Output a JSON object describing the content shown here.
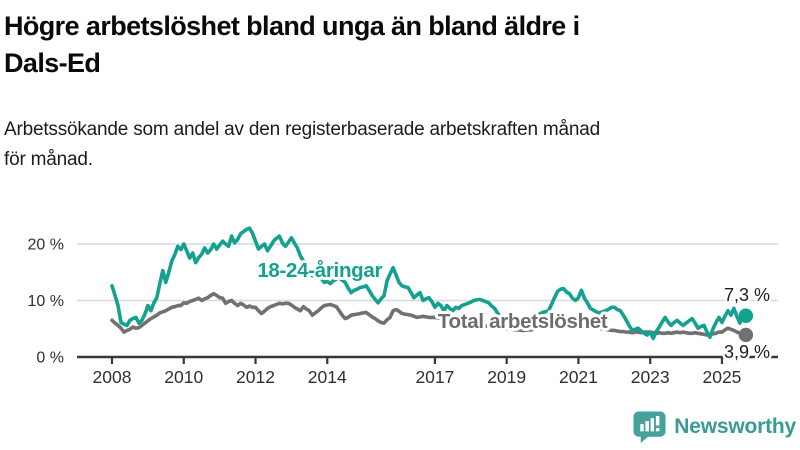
{
  "title": {
    "lines": [
      "Högre arbetslöshet bland unga än bland äldre i",
      "Dals-Ed"
    ]
  },
  "subtitle": {
    "lines": [
      "Arbetssökande som andel av den registerbaserade arbetskraften månad",
      "för månad."
    ]
  },
  "branding": {
    "logo_text": "Newsworthy",
    "logo_icon": "newsworthy-chart-bubble-icon",
    "icon_color": "#46a19b",
    "text_color": "#3a9a95"
  },
  "colors": {
    "accent_teal": "#14a18f",
    "line_gray": "#717171",
    "grid": "#d9d9d9",
    "axis": "#383838",
    "tick_text": "#303030",
    "end_label_text": "#1f1f1f",
    "background": "#ffffff"
  },
  "chart_data": {
    "type": "line",
    "title": "Högre arbetslöshet bland unga än bland äldre i Dals-Ed",
    "subtitle": "Arbetssökande som andel av den registerbaserade arbetskraften månad för månad.",
    "xlabel": "",
    "ylabel": "",
    "x_unit": "month",
    "x_start": "2008-01",
    "x_end": "2025-09",
    "ylim": [
      0,
      24
    ],
    "grid": "horizontal",
    "legend_position": "inline-labels",
    "yticks": [
      {
        "value": 0,
        "label": "0 %"
      },
      {
        "value": 10,
        "label": "10 %"
      },
      {
        "value": 20,
        "label": "20 %"
      }
    ],
    "xticks": [
      2008,
      2010,
      2012,
      2014,
      2017,
      2019,
      2021,
      2023,
      2025
    ],
    "series": [
      {
        "name": "18-24-åringar",
        "color": "#14a18f",
        "label_color": "#14a18f",
        "end_label": "7,3 %",
        "end_value": 7.3,
        "values": [
          12.6,
          10.9,
          9.1,
          6.1,
          5.8,
          5.6,
          6.5,
          6.8,
          7.0,
          6.0,
          6.5,
          7.6,
          9.1,
          8.2,
          9.6,
          10.5,
          13.0,
          15.3,
          13.2,
          15.0,
          17.0,
          18.1,
          19.6,
          19.0,
          20.0,
          18.8,
          17.5,
          18.4,
          16.7,
          17.6,
          18.2,
          19.3,
          18.4,
          19.0,
          20.0,
          19.1,
          19.8,
          20.5,
          20.0,
          19.6,
          21.4,
          20.2,
          20.8,
          21.8,
          22.2,
          22.6,
          22.8,
          21.9,
          20.5,
          19.1,
          19.6,
          20.0,
          18.8,
          19.6,
          20.5,
          21.0,
          21.4,
          20.2,
          19.6,
          20.3,
          21.1,
          20.2,
          19.3,
          17.9,
          17.0,
          16.5,
          15.2,
          14.4,
          14.8,
          15.3,
          13.9,
          13.2,
          13.4,
          13.0,
          13.5,
          13.8,
          14.0,
          13.6,
          13.2,
          12.2,
          11.4,
          11.8,
          12.0,
          12.3,
          12.4,
          12.6,
          11.8,
          10.9,
          10.2,
          9.6,
          10.3,
          10.9,
          13.5,
          14.7,
          15.8,
          14.5,
          13.2,
          12.6,
          12.4,
          12.3,
          11.4,
          10.5,
          11.0,
          11.4,
          10.0,
          10.3,
          10.5,
          9.8,
          8.8,
          9.5,
          9.1,
          8.2,
          9.1,
          8.6,
          8.2,
          8.8,
          8.6,
          9.1,
          9.3,
          9.5,
          9.7,
          10.0,
          10.1,
          10.2,
          10.0,
          9.8,
          9.6,
          9.0,
          8.6,
          7.7,
          7.2,
          6.9,
          6.6,
          6.9,
          6.4,
          6.7,
          6.2,
          6.5,
          6.9,
          7.2,
          6.8,
          7.0,
          7.3,
          7.6,
          7.9,
          8.0,
          8.2,
          9.3,
          10.5,
          11.6,
          12.0,
          12.1,
          11.5,
          11.2,
          10.4,
          10.0,
          10.5,
          11.8,
          10.4,
          9.6,
          8.6,
          8.3,
          8.0,
          7.8,
          8.0,
          8.2,
          8.4,
          8.8,
          8.8,
          8.4,
          8.2,
          7.4,
          6.5,
          5.5,
          4.7,
          4.9,
          5.1,
          4.6,
          4.2,
          3.9,
          4.4,
          3.3,
          4.5,
          5.3,
          6.2,
          7.0,
          6.2,
          5.6,
          6.1,
          6.5,
          6.0,
          5.6,
          6.0,
          6.4,
          6.8,
          6.0,
          5.1,
          5.4,
          5.6,
          4.4,
          3.5,
          5.0,
          6.1,
          7.0,
          6.1,
          7.2,
          8.2,
          7.4,
          8.6,
          7.2,
          6.0,
          7.7,
          7.3
        ]
      },
      {
        "name": "Total arbetslöshet",
        "color": "#717171",
        "label_color": "#6d6d6d",
        "end_label": "3,9 %",
        "end_value": 3.9,
        "values": [
          6.5,
          6.0,
          5.6,
          5.1,
          4.4,
          4.7,
          4.9,
          5.3,
          5.1,
          5.2,
          5.6,
          6.0,
          6.4,
          6.8,
          7.1,
          7.4,
          7.8,
          8.0,
          8.2,
          8.5,
          8.8,
          8.9,
          9.1,
          9.1,
          9.6,
          9.5,
          9.8,
          10.0,
          10.2,
          10.4,
          10.0,
          10.3,
          10.5,
          10.9,
          11.2,
          10.9,
          10.5,
          10.4,
          9.5,
          9.8,
          10.0,
          9.5,
          9.1,
          9.5,
          9.2,
          8.8,
          9.0,
          8.8,
          8.8,
          8.2,
          7.7,
          8.1,
          8.6,
          8.9,
          9.1,
          9.3,
          9.5,
          9.4,
          9.5,
          9.5,
          9.2,
          8.8,
          8.5,
          8.2,
          8.9,
          8.5,
          8.2,
          7.4,
          7.8,
          8.2,
          8.7,
          9.1,
          9.2,
          9.3,
          9.1,
          8.9,
          8.2,
          7.4,
          6.8,
          7.0,
          7.4,
          7.5,
          7.6,
          7.7,
          7.8,
          7.9,
          7.5,
          7.1,
          6.8,
          6.4,
          6.1,
          6.0,
          6.6,
          7.0,
          8.2,
          8.4,
          8.1,
          7.7,
          7.6,
          7.5,
          7.4,
          7.2,
          7.0,
          7.1,
          7.2,
          7.1,
          7.0,
          7.0,
          7.0,
          6.9,
          6.8,
          6.7,
          6.6,
          6.5,
          6.4,
          6.3,
          6.2,
          6.1,
          6.0,
          6.0,
          5.9,
          5.8,
          5.8,
          5.7,
          5.6,
          5.5,
          5.4,
          5.4,
          5.3,
          5.2,
          5.1,
          5.1,
          5.0,
          5.0,
          4.9,
          4.8,
          4.8,
          4.7,
          4.7,
          4.8,
          4.8,
          4.9,
          5.0,
          5.1,
          5.2,
          5.3,
          5.5,
          6.0,
          6.4,
          6.6,
          6.7,
          6.6,
          6.5,
          6.4,
          6.3,
          6.2,
          6.2,
          6.1,
          6.0,
          5.8,
          5.6,
          5.4,
          5.2,
          5.1,
          5.0,
          4.9,
          4.8,
          4.7,
          4.7,
          4.6,
          4.5,
          4.5,
          4.4,
          4.4,
          4.3,
          4.4,
          4.4,
          4.3,
          4.4,
          4.4,
          4.4,
          4.3,
          4.2,
          4.3,
          4.2,
          4.2,
          4.3,
          4.2,
          4.3,
          4.4,
          4.3,
          4.4,
          4.3,
          4.2,
          4.2,
          4.3,
          4.2,
          4.1,
          4.0,
          3.9,
          4.0,
          4.1,
          4.2,
          4.4,
          4.4,
          4.8,
          5.1,
          4.9,
          4.7,
          4.4,
          4.2,
          4.0,
          3.9
        ]
      }
    ]
  }
}
